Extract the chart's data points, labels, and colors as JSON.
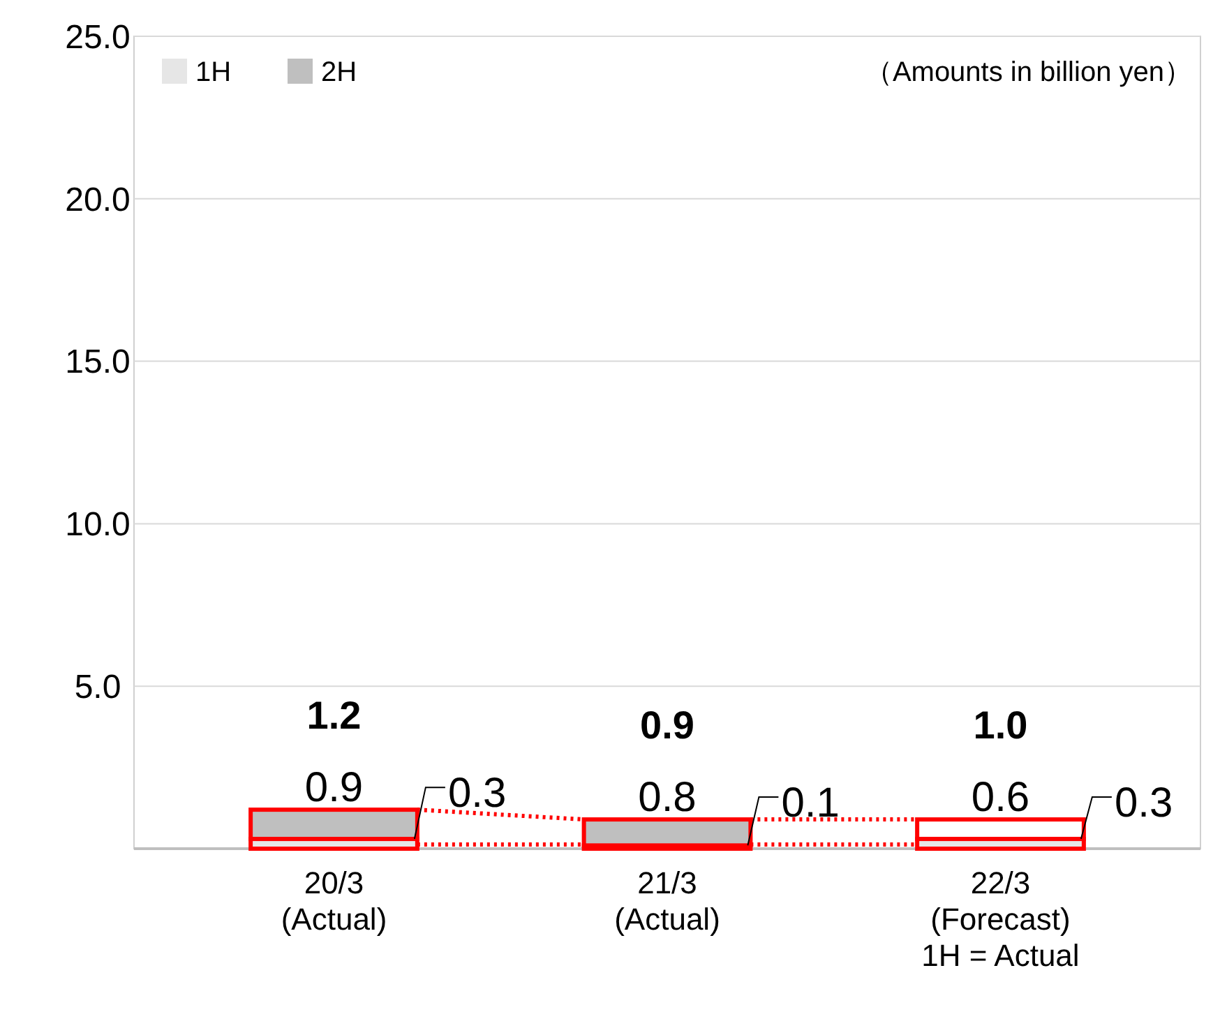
{
  "chart_data": {
    "type": "bar",
    "stacked": true,
    "categories": [
      "20/3\n(Actual)",
      "21/3\n(Actual)",
      "22/3\n(Forecast)\n1H = Actual"
    ],
    "series": [
      {
        "name": "1H",
        "color": "#e6e6e6",
        "values": [
          0.3,
          0.1,
          0.3
        ],
        "value_labels": [
          "0.3",
          "0.1",
          "0.3"
        ]
      },
      {
        "name": "2H",
        "color": "#bfbfbf",
        "colors": [
          "#bfbfbf",
          "#bfbfbf",
          "#ffffff"
        ],
        "values": [
          0.9,
          0.8,
          0.6
        ],
        "value_labels": [
          "0.9",
          "0.8",
          "0.6"
        ]
      }
    ],
    "totals": [
      "1.2",
      "0.9",
      "1.0"
    ],
    "ylim": [
      0,
      25
    ],
    "yticks": [
      {
        "value": 0,
        "label": null
      },
      {
        "value": 5,
        "label": "5.0"
      },
      {
        "value": 10,
        "label": "10.0"
      },
      {
        "value": 15,
        "label": "15.0"
      },
      {
        "value": 20,
        "label": "20.0"
      },
      {
        "value": 25,
        "label": "25.0"
      }
    ],
    "grid": "y",
    "legend": "top left",
    "annotations": [
      "（Amounts in billion yen）"
    ]
  }
}
